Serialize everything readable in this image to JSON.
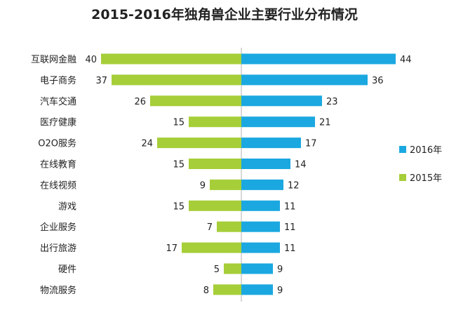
{
  "chart_data": {
    "type": "bar",
    "orientation": "horizontal-diverging",
    "title": "2015-2016年独角兽企业主要行业分布情况",
    "categories": [
      "互联网金融",
      "电子商务",
      "汽车交通",
      "医疗健康",
      "O2O服务",
      "在线教育",
      "在线视频",
      "游戏",
      "企业服务",
      "出行旅游",
      "硬件",
      "物流服务"
    ],
    "series": [
      {
        "name": "2016年",
        "color": "#1ba8e0",
        "side": "right",
        "values": [
          44,
          36,
          23,
          21,
          17,
          14,
          12,
          11,
          11,
          11,
          9,
          9
        ]
      },
      {
        "name": "2015年",
        "color": "#a6ce39",
        "side": "left",
        "values": [
          40,
          37,
          26,
          15,
          24,
          15,
          9,
          15,
          7,
          17,
          5,
          8
        ]
      }
    ],
    "legend_position": "right",
    "grid": false
  }
}
